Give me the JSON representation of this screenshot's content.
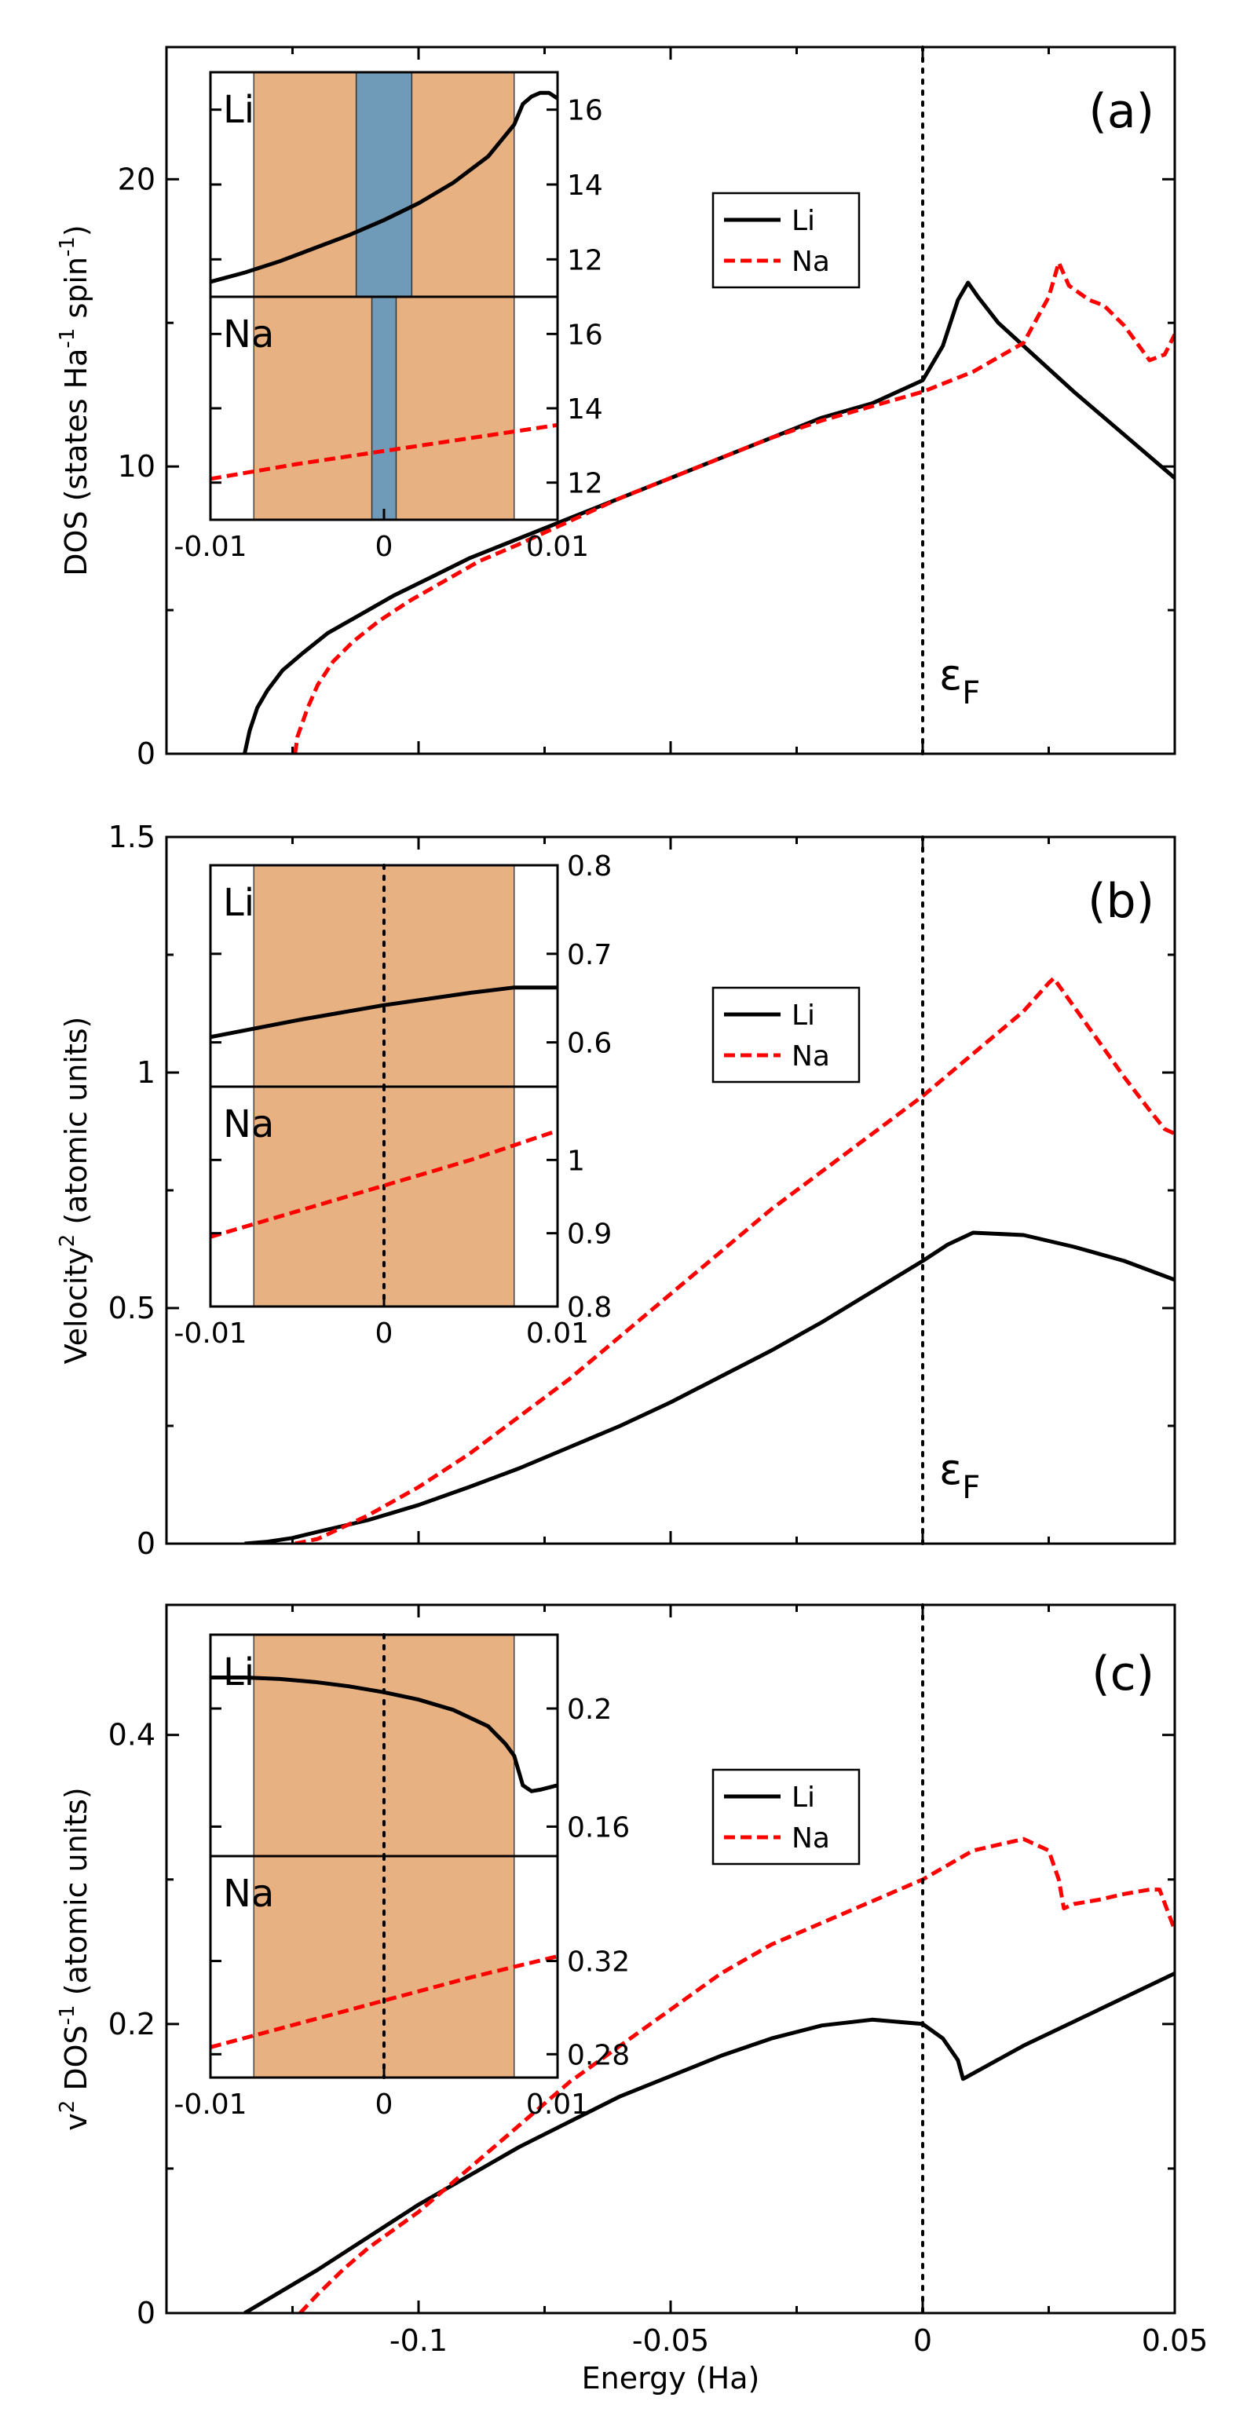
{
  "chart_data": [
    {
      "type": "line",
      "panel_label": "(a)",
      "ylabel": "DOS (states Ha",
      "ylabel_sup1": "-1",
      "ylabel_mid": " spin",
      "ylabel_sup2": "-1",
      "ylabel_end": ")",
      "xlim": [
        -0.15,
        0.05
      ],
      "ylim": [
        0,
        24.6
      ],
      "yticks": [
        0,
        10,
        20
      ],
      "ytick_labels": [
        "0",
        "10",
        "20"
      ],
      "fermi_label": "ε",
      "fermi_sub": "F",
      "legend": [
        "Li",
        "Na"
      ],
      "series": [
        {
          "name": "Li",
          "color": "#000000",
          "dash": "solid",
          "x": [
            -0.1345,
            -0.1335,
            -0.132,
            -0.13,
            -0.127,
            -0.123,
            -0.118,
            -0.112,
            -0.105,
            -0.098,
            -0.09,
            -0.08,
            -0.07,
            -0.06,
            -0.05,
            -0.04,
            -0.03,
            -0.02,
            -0.01,
            0.0,
            0.004,
            0.007,
            0.009,
            0.011,
            0.015,
            0.02,
            0.03,
            0.04,
            0.05
          ],
          "y": [
            0,
            0.8,
            1.6,
            2.2,
            2.9,
            3.5,
            4.2,
            4.8,
            5.5,
            6.1,
            6.8,
            7.5,
            8.2,
            8.9,
            9.6,
            10.3,
            11.0,
            11.7,
            12.2,
            13.0,
            14.2,
            15.8,
            16.4,
            15.9,
            15.0,
            14.2,
            12.6,
            11.1,
            9.6
          ]
        },
        {
          "name": "Na",
          "color": "#ff0000",
          "dash": "dashed",
          "x": [
            -0.1245,
            -0.124,
            -0.122,
            -0.12,
            -0.117,
            -0.113,
            -0.108,
            -0.102,
            -0.095,
            -0.088,
            -0.08,
            -0.07,
            -0.06,
            -0.05,
            -0.04,
            -0.03,
            -0.02,
            -0.01,
            0.0,
            0.01,
            0.02,
            0.025,
            0.027,
            0.029,
            0.033,
            0.036,
            0.04,
            0.045,
            0.048,
            0.05
          ],
          "y": [
            0,
            0.6,
            1.6,
            2.4,
            3.2,
            3.9,
            4.6,
            5.3,
            6.0,
            6.7,
            7.3,
            8.1,
            8.9,
            9.6,
            10.3,
            11.0,
            11.6,
            12.1,
            12.6,
            13.3,
            14.3,
            15.9,
            17.1,
            16.3,
            15.8,
            15.6,
            14.9,
            13.7,
            13.9,
            14.6
          ]
        }
      ],
      "inset": {
        "xlim": [
          -0.01,
          0.01
        ],
        "xticks": [
          -0.01,
          0,
          0.01
        ],
        "xtick_labels": [
          "-0.01",
          "0",
          "0.01"
        ],
        "top": {
          "label": "Li",
          "ylim": [
            11,
            17
          ],
          "yticks": [
            12,
            14,
            16
          ],
          "ytick_labels": [
            "12",
            "14",
            "16"
          ],
          "shade_outer": [
            -0.0075,
            0.0075
          ],
          "shade_inner": [
            -0.0016,
            0.0016
          ],
          "x": [
            -0.01,
            -0.008,
            -0.006,
            -0.004,
            -0.002,
            0.0,
            0.002,
            0.004,
            0.006,
            0.0075,
            0.008,
            0.0085,
            0.009,
            0.0095,
            0.01
          ],
          "y": [
            11.4,
            11.65,
            11.95,
            12.3,
            12.65,
            13.05,
            13.5,
            14.05,
            14.75,
            15.6,
            16.15,
            16.35,
            16.45,
            16.45,
            16.3
          ]
        },
        "bottom": {
          "label": "Na",
          "ylim": [
            11,
            17
          ],
          "yticks": [
            12,
            14,
            16
          ],
          "ytick_labels": [
            "12",
            "14",
            "16"
          ],
          "shade_outer": [
            -0.0075,
            0.0075
          ],
          "shade_inner": [
            -0.0007,
            0.0007
          ],
          "x": [
            -0.01,
            -0.005,
            0.0,
            0.005,
            0.01
          ],
          "y": [
            12.1,
            12.5,
            12.85,
            13.2,
            13.55
          ]
        }
      }
    },
    {
      "type": "line",
      "panel_label": "(b)",
      "ylabel": "Velocity",
      "ylabel_sup1": "2",
      "ylabel_end": " (atomic units)",
      "xlim": [
        -0.15,
        0.05
      ],
      "ylim": [
        0,
        1.5
      ],
      "yticks": [
        0,
        0.5,
        1,
        1.5
      ],
      "ytick_labels": [
        "0",
        "0.5",
        "1",
        "1.5"
      ],
      "fermi_label": "ε",
      "fermi_sub": "F",
      "legend": [
        "Li",
        "Na"
      ],
      "series": [
        {
          "name": "Li",
          "color": "#000000",
          "dash": "solid",
          "x": [
            -0.1345,
            -0.13,
            -0.125,
            -0.12,
            -0.11,
            -0.1,
            -0.09,
            -0.08,
            -0.07,
            -0.06,
            -0.05,
            -0.04,
            -0.03,
            -0.02,
            -0.01,
            0.0,
            0.005,
            0.01,
            0.02,
            0.03,
            0.04,
            0.05
          ],
          "y": [
            0.0,
            0.004,
            0.012,
            0.025,
            0.05,
            0.082,
            0.12,
            0.16,
            0.205,
            0.25,
            0.3,
            0.355,
            0.41,
            0.47,
            0.535,
            0.6,
            0.635,
            0.66,
            0.655,
            0.63,
            0.6,
            0.56
          ]
        },
        {
          "name": "Na",
          "color": "#ff0000",
          "dash": "dashed",
          "x": [
            -0.1245,
            -0.12,
            -0.115,
            -0.11,
            -0.1,
            -0.09,
            -0.08,
            -0.07,
            -0.06,
            -0.05,
            -0.04,
            -0.03,
            -0.02,
            -0.01,
            0.0,
            0.01,
            0.02,
            0.025,
            0.026,
            0.03,
            0.04,
            0.045,
            0.048,
            0.05
          ],
          "y": [
            0.0,
            0.01,
            0.035,
            0.06,
            0.12,
            0.19,
            0.27,
            0.35,
            0.44,
            0.53,
            0.62,
            0.71,
            0.79,
            0.87,
            0.95,
            1.04,
            1.13,
            1.19,
            1.2,
            1.14,
            0.99,
            0.92,
            0.88,
            0.87
          ]
        }
      ],
      "inset": {
        "xlim": [
          -0.01,
          0.01
        ],
        "xticks": [
          -0.01,
          0,
          0.01
        ],
        "xtick_labels": [
          "-0.01",
          "0",
          "0.01"
        ],
        "top": {
          "label": "Li",
          "ylim": [
            0.55,
            0.8
          ],
          "yticks": [
            0.6,
            0.7,
            0.8
          ],
          "ytick_labels": [
            "0.6",
            "0.7",
            "0.8"
          ],
          "shade_outer": [
            -0.0075,
            0.0075
          ],
          "x": [
            -0.01,
            -0.005,
            0.0,
            0.005,
            0.0075,
            0.01
          ],
          "y": [
            0.606,
            0.625,
            0.642,
            0.656,
            0.662,
            0.662
          ]
        },
        "bottom": {
          "label": "Na",
          "ylim": [
            0.8,
            1.1
          ],
          "yticks": [
            0.8,
            0.9,
            1
          ],
          "ytick_labels": [
            "0.8",
            "0.9",
            "1"
          ],
          "shade_outer": [
            -0.0075,
            0.0075
          ],
          "x": [
            -0.01,
            -0.005,
            0.0,
            0.005,
            0.01
          ],
          "y": [
            0.895,
            0.93,
            0.965,
            1.0,
            1.04
          ]
        }
      }
    },
    {
      "type": "line",
      "panel_label": "(c)",
      "ylabel": "v",
      "ylabel_sup1": "2",
      "ylabel_mid": " DOS",
      "ylabel_sup2": "-1",
      "ylabel_end": " (atomic units)",
      "xlim": [
        -0.15,
        0.05
      ],
      "ylim": [
        0,
        0.49
      ],
      "yticks": [
        0,
        0.2,
        0.4
      ],
      "ytick_labels": [
        "0",
        "0.2",
        "0.4"
      ],
      "fermi_label": "",
      "fermi_sub": "",
      "legend": [
        "Li",
        "Na"
      ],
      "xlabel": "Energy (Ha)",
      "xticks": [
        -0.1,
        -0.05,
        0,
        0.05
      ],
      "xtick_labels": [
        "-0.1",
        "-0.05",
        "0",
        "0.05"
      ],
      "series": [
        {
          "name": "Li",
          "color": "#000000",
          "dash": "solid",
          "x": [
            -0.1345,
            -0.12,
            -0.1,
            -0.08,
            -0.06,
            -0.04,
            -0.03,
            -0.02,
            -0.01,
            0.0,
            0.004,
            0.007,
            0.008,
            0.02,
            0.035,
            0.05
          ],
          "y": [
            0.0,
            0.03,
            0.075,
            0.115,
            0.15,
            0.178,
            0.19,
            0.199,
            0.203,
            0.2,
            0.19,
            0.175,
            0.162,
            0.185,
            0.21,
            0.235
          ]
        },
        {
          "name": "Na",
          "color": "#ff0000",
          "dash": "dashed",
          "x": [
            -0.1235,
            -0.12,
            -0.115,
            -0.11,
            -0.1,
            -0.09,
            -0.08,
            -0.07,
            -0.06,
            -0.05,
            -0.04,
            -0.03,
            -0.02,
            -0.01,
            0.0,
            0.01,
            0.02,
            0.025,
            0.027,
            0.028,
            0.03,
            0.035,
            0.04,
            0.045,
            0.047,
            0.05
          ],
          "y": [
            0.0,
            0.013,
            0.03,
            0.045,
            0.07,
            0.1,
            0.13,
            0.16,
            0.185,
            0.21,
            0.235,
            0.255,
            0.27,
            0.285,
            0.3,
            0.32,
            0.328,
            0.32,
            0.3,
            0.28,
            0.283,
            0.286,
            0.29,
            0.293,
            0.293,
            0.265
          ]
        }
      ],
      "inset": {
        "xlim": [
          -0.01,
          0.01
        ],
        "xticks": [
          -0.01,
          0,
          0.01
        ],
        "xtick_labels": [
          "-0.01",
          "0",
          "0.01"
        ],
        "top": {
          "label": "Li",
          "ylim": [
            0.15,
            0.225
          ],
          "yticks": [
            0.16,
            0.2
          ],
          "ytick_labels": [
            "0.16",
            "0.2"
          ],
          "shade_outer": [
            -0.0075,
            0.0075
          ],
          "x": [
            -0.01,
            -0.008,
            -0.006,
            -0.004,
            -0.002,
            0.0,
            0.002,
            0.004,
            0.006,
            0.007,
            0.0075,
            0.008,
            0.0085,
            0.009,
            0.01
          ],
          "y": [
            0.2105,
            0.2105,
            0.21,
            0.209,
            0.2075,
            0.2055,
            0.203,
            0.1995,
            0.194,
            0.188,
            0.184,
            0.174,
            0.172,
            0.1725,
            0.174
          ]
        },
        "bottom": {
          "label": "Na",
          "ylim": [
            0.27,
            0.365
          ],
          "yticks": [
            0.28,
            0.32
          ],
          "ytick_labels": [
            "0.28",
            "0.32"
          ],
          "shade_outer": [
            -0.0075,
            0.0075
          ],
          "x": [
            -0.01,
            -0.005,
            0.0,
            0.005,
            0.01
          ],
          "y": [
            0.283,
            0.293,
            0.303,
            0.313,
            0.322
          ]
        }
      }
    }
  ]
}
